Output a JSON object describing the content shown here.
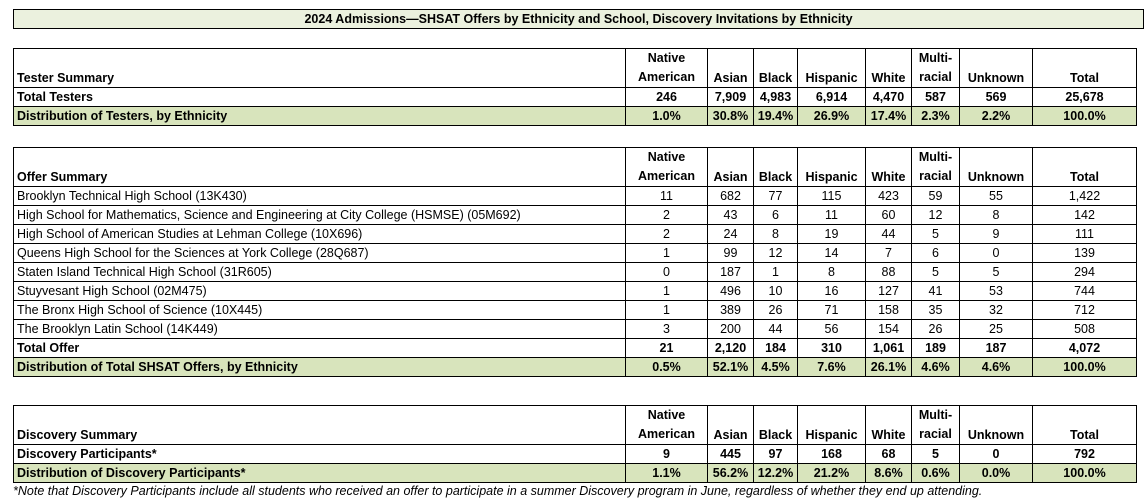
{
  "title": "2024 Admissions—SHSAT Offers by Ethnicity and School, Discovery Invitations by Ethnicity",
  "columns": [
    {
      "line1": "Native",
      "line2": "American"
    },
    {
      "line1": "",
      "line2": "Asian"
    },
    {
      "line1": "",
      "line2": "Black"
    },
    {
      "line1": "",
      "line2": "Hispanic"
    },
    {
      "line1": "",
      "line2": "White"
    },
    {
      "line1": "Multi-",
      "line2": "racial"
    },
    {
      "line1": "",
      "line2": "Unknown"
    },
    {
      "line1": "",
      "line2": "Total"
    }
  ],
  "tester": {
    "heading": "Tester Summary",
    "total_row": {
      "label": "Total Testers",
      "values": [
        "246",
        "7,909",
        "4,983",
        "6,914",
        "4,470",
        "587",
        "569",
        "25,678"
      ]
    },
    "dist_row": {
      "label": "Distribution of Testers, by Ethnicity",
      "values": [
        "1.0%",
        "30.8%",
        "19.4%",
        "26.9%",
        "17.4%",
        "2.3%",
        "2.2%",
        "100.0%"
      ]
    }
  },
  "offer": {
    "heading": "Offer Summary",
    "rows": [
      {
        "label": "Brooklyn Technical High School (13K430)",
        "values": [
          "11",
          "682",
          "77",
          "115",
          "423",
          "59",
          "55",
          "1,422"
        ]
      },
      {
        "label": "High School for Mathematics, Science and Engineering at City College (HSMSE) (05M692)",
        "values": [
          "2",
          "43",
          "6",
          "11",
          "60",
          "12",
          "8",
          "142"
        ]
      },
      {
        "label": "High School of American Studies at Lehman College (10X696)",
        "values": [
          "2",
          "24",
          "8",
          "19",
          "44",
          "5",
          "9",
          "111"
        ]
      },
      {
        "label": "Queens High School for the Sciences at York College (28Q687)",
        "values": [
          "1",
          "99",
          "12",
          "14",
          "7",
          "6",
          "0",
          "139"
        ]
      },
      {
        "label": "Staten Island Technical High School (31R605)",
        "values": [
          "0",
          "187",
          "1",
          "8",
          "88",
          "5",
          "5",
          "294"
        ]
      },
      {
        "label": "Stuyvesant High School (02M475)",
        "values": [
          "1",
          "496",
          "10",
          "16",
          "127",
          "41",
          "53",
          "744"
        ]
      },
      {
        "label": "The Bronx High School of Science (10X445)",
        "values": [
          "1",
          "389",
          "26",
          "71",
          "158",
          "35",
          "32",
          "712"
        ]
      },
      {
        "label": "The Brooklyn Latin School (14K449)",
        "values": [
          "3",
          "200",
          "44",
          "56",
          "154",
          "26",
          "25",
          "508"
        ]
      }
    ],
    "total_row": {
      "label": "Total Offer",
      "values": [
        "21",
        "2,120",
        "184",
        "310",
        "1,061",
        "189",
        "187",
        "4,072"
      ]
    },
    "dist_row": {
      "label": "Distribution of Total SHSAT Offers, by Ethnicity",
      "values": [
        "0.5%",
        "52.1%",
        "4.5%",
        "7.6%",
        "26.1%",
        "4.6%",
        "4.6%",
        "100.0%"
      ]
    }
  },
  "discovery": {
    "heading": "Discovery Summary",
    "total_row": {
      "label": "Discovery Participants*",
      "values": [
        "9",
        "445",
        "97",
        "168",
        "68",
        "5",
        "0",
        "792"
      ]
    },
    "dist_row": {
      "label": "Distribution of Discovery Participants*",
      "values": [
        "1.1%",
        "56.2%",
        "12.2%",
        "21.2%",
        "8.6%",
        "0.6%",
        "0.0%",
        "100.0%"
      ]
    }
  },
  "footnote": "*Note that Discovery Participants include all students who received an offer to participate in a summer Discovery program in June, regardless of whether they end up attending."
}
